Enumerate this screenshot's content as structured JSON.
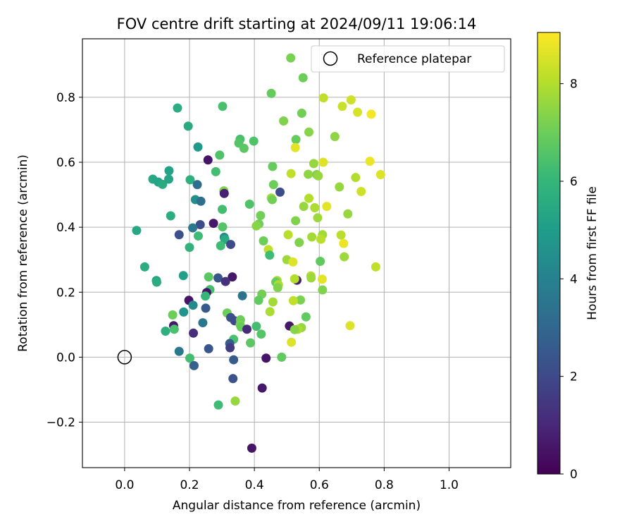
{
  "chart_data": {
    "type": "scatter",
    "title": "FOV centre drift starting at 2024/09/11 19:06:14",
    "xlabel": "Angular distance from reference (arcmin)",
    "ylabel": "Rotation from reference (arcmin)",
    "xlim": [
      -0.13,
      1.19
    ],
    "ylim": [
      -0.34,
      0.98
    ],
    "xticks": [
      0.0,
      0.2,
      0.4,
      0.6,
      0.8,
      1.0
    ],
    "xtick_labels": [
      "0.0",
      "0.2",
      "0.4",
      "0.6",
      "0.8",
      "1.0"
    ],
    "yticks": [
      -0.2,
      0.0,
      0.2,
      0.4,
      0.6,
      0.8
    ],
    "ytick_labels": [
      "−0.2",
      "0.0",
      "0.2",
      "0.4",
      "0.6",
      "0.8"
    ],
    "grid": true,
    "legend": {
      "placement": "top-right",
      "entries": [
        {
          "label": "Reference platepar",
          "marker": "open-circle",
          "x": 0.0,
          "y": 0.0
        }
      ]
    },
    "colorbar": {
      "label": "Hours from first FF file",
      "colormap": "viridis",
      "range": [
        0,
        9.05
      ],
      "ticks": [
        0,
        2,
        4,
        6,
        8
      ],
      "tick_labels": [
        "0",
        "2",
        "4",
        "6",
        "8"
      ]
    },
    "colormap_stops": [
      "#440154",
      "#482878",
      "#3e4a89",
      "#31688e",
      "#26828e",
      "#1f9e89",
      "#35b779",
      "#6ece58",
      "#b5de2b",
      "#fde725"
    ],
    "points": [
      {
        "x": 0.512,
        "y": 0.921,
        "h": 7.2
      },
      {
        "x": 0.55,
        "y": 0.86,
        "h": 7.0
      },
      {
        "x": 0.452,
        "y": 0.812,
        "h": 6.9
      },
      {
        "x": 0.613,
        "y": 0.798,
        "h": 8.2
      },
      {
        "x": 0.698,
        "y": 0.792,
        "h": 8.4
      },
      {
        "x": 0.76,
        "y": 0.748,
        "h": 8.9
      },
      {
        "x": 0.671,
        "y": 0.772,
        "h": 8.3
      },
      {
        "x": 0.718,
        "y": 0.754,
        "h": 8.5
      },
      {
        "x": 0.163,
        "y": 0.767,
        "h": 5.6
      },
      {
        "x": 0.302,
        "y": 0.772,
        "h": 6.4
      },
      {
        "x": 0.546,
        "y": 0.751,
        "h": 7.1
      },
      {
        "x": 0.49,
        "y": 0.727,
        "h": 7.3
      },
      {
        "x": 0.196,
        "y": 0.711,
        "h": 5.5
      },
      {
        "x": 0.568,
        "y": 0.693,
        "h": 7.4
      },
      {
        "x": 0.648,
        "y": 0.679,
        "h": 7.5
      },
      {
        "x": 0.356,
        "y": 0.671,
        "h": 6.4
      },
      {
        "x": 0.398,
        "y": 0.665,
        "h": 6.5
      },
      {
        "x": 0.528,
        "y": 0.67,
        "h": 6.9
      },
      {
        "x": 0.226,
        "y": 0.647,
        "h": 4.9
      },
      {
        "x": 0.352,
        "y": 0.659,
        "h": 6.6
      },
      {
        "x": 0.368,
        "y": 0.643,
        "h": 6.7
      },
      {
        "x": 0.526,
        "y": 0.645,
        "h": 8.7
      },
      {
        "x": 0.293,
        "y": 0.622,
        "h": 6.5
      },
      {
        "x": 0.257,
        "y": 0.607,
        "h": 0.5
      },
      {
        "x": 0.612,
        "y": 0.6,
        "h": 8.6
      },
      {
        "x": 0.756,
        "y": 0.603,
        "h": 8.8
      },
      {
        "x": 0.583,
        "y": 0.596,
        "h": 7.6
      },
      {
        "x": 0.456,
        "y": 0.587,
        "h": 6.9
      },
      {
        "x": 0.137,
        "y": 0.574,
        "h": 5.2
      },
      {
        "x": 0.281,
        "y": 0.571,
        "h": 6.3
      },
      {
        "x": 0.566,
        "y": 0.563,
        "h": 7.5
      },
      {
        "x": 0.513,
        "y": 0.565,
        "h": 8.2
      },
      {
        "x": 0.592,
        "y": 0.562,
        "h": 7.3
      },
      {
        "x": 0.597,
        "y": 0.558,
        "h": 7.6
      },
      {
        "x": 0.712,
        "y": 0.553,
        "h": 8.0
      },
      {
        "x": 0.789,
        "y": 0.562,
        "h": 8.6
      },
      {
        "x": 0.087,
        "y": 0.548,
        "h": 5.4
      },
      {
        "x": 0.104,
        "y": 0.539,
        "h": 5.3
      },
      {
        "x": 0.117,
        "y": 0.532,
        "h": 5.5
      },
      {
        "x": 0.202,
        "y": 0.546,
        "h": 5.7
      },
      {
        "x": 0.136,
        "y": 0.548,
        "h": 5.3
      },
      {
        "x": 0.224,
        "y": 0.531,
        "h": 3.2
      },
      {
        "x": 0.459,
        "y": 0.531,
        "h": 7.0
      },
      {
        "x": 0.662,
        "y": 0.524,
        "h": 7.6
      },
      {
        "x": 0.729,
        "y": 0.51,
        "h": 8.4
      },
      {
        "x": 0.306,
        "y": 0.512,
        "h": 7.3
      },
      {
        "x": 0.479,
        "y": 0.508,
        "h": 2.1
      },
      {
        "x": 0.307,
        "y": 0.504,
        "h": 0.8
      },
      {
        "x": 0.568,
        "y": 0.489,
        "h": 8.0
      },
      {
        "x": 0.452,
        "y": 0.49,
        "h": 7.8
      },
      {
        "x": 0.455,
        "y": 0.485,
        "h": 7.1
      },
      {
        "x": 0.218,
        "y": 0.485,
        "h": 4.5
      },
      {
        "x": 0.235,
        "y": 0.48,
        "h": 3.3
      },
      {
        "x": 0.385,
        "y": 0.471,
        "h": 6.5
      },
      {
        "x": 0.586,
        "y": 0.46,
        "h": 7.9
      },
      {
        "x": 0.552,
        "y": 0.464,
        "h": 7.6
      },
      {
        "x": 0.623,
        "y": 0.464,
        "h": 8.7
      },
      {
        "x": 0.301,
        "y": 0.455,
        "h": 6.3
      },
      {
        "x": 0.688,
        "y": 0.441,
        "h": 7.6
      },
      {
        "x": 0.419,
        "y": 0.436,
        "h": 7.1
      },
      {
        "x": 0.142,
        "y": 0.435,
        "h": 5.6
      },
      {
        "x": 0.595,
        "y": 0.429,
        "h": 7.7
      },
      {
        "x": 0.527,
        "y": 0.42,
        "h": 7.3
      },
      {
        "x": 0.414,
        "y": 0.41,
        "h": 7.1
      },
      {
        "x": 0.406,
        "y": 0.404,
        "h": 7.4
      },
      {
        "x": 0.274,
        "y": 0.412,
        "h": 0.6
      },
      {
        "x": 0.233,
        "y": 0.408,
        "h": 2.1
      },
      {
        "x": 0.302,
        "y": 0.401,
        "h": 6.6
      },
      {
        "x": 0.21,
        "y": 0.398,
        "h": 3.6
      },
      {
        "x": 0.037,
        "y": 0.39,
        "h": 5.4
      },
      {
        "x": 0.504,
        "y": 0.377,
        "h": 8.1
      },
      {
        "x": 0.168,
        "y": 0.377,
        "h": 2.2
      },
      {
        "x": 0.227,
        "y": 0.373,
        "h": 6.2
      },
      {
        "x": 0.577,
        "y": 0.37,
        "h": 7.8
      },
      {
        "x": 0.61,
        "y": 0.377,
        "h": 7.8
      },
      {
        "x": 0.667,
        "y": 0.376,
        "h": 8.1
      },
      {
        "x": 0.307,
        "y": 0.369,
        "h": 4.4
      },
      {
        "x": 0.309,
        "y": 0.362,
        "h": 5.5
      },
      {
        "x": 0.428,
        "y": 0.358,
        "h": 7.0
      },
      {
        "x": 0.605,
        "y": 0.363,
        "h": 8.1
      },
      {
        "x": 0.538,
        "y": 0.353,
        "h": 7.3
      },
      {
        "x": 0.327,
        "y": 0.347,
        "h": 2.0
      },
      {
        "x": 0.296,
        "y": 0.343,
        "h": 6.2
      },
      {
        "x": 0.675,
        "y": 0.35,
        "h": 8.8
      },
      {
        "x": 0.2,
        "y": 0.338,
        "h": 5.8
      },
      {
        "x": 0.443,
        "y": 0.331,
        "h": 8.2
      },
      {
        "x": 0.447,
        "y": 0.314,
        "h": 6.2
      },
      {
        "x": 0.677,
        "y": 0.309,
        "h": 7.7
      },
      {
        "x": 0.5,
        "y": 0.3,
        "h": 7.7
      },
      {
        "x": 0.519,
        "y": 0.293,
        "h": 8.6
      },
      {
        "x": 0.603,
        "y": 0.295,
        "h": 6.8
      },
      {
        "x": 0.062,
        "y": 0.278,
        "h": 5.6
      },
      {
        "x": 0.774,
        "y": 0.278,
        "h": 8.2
      },
      {
        "x": 0.574,
        "y": 0.25,
        "h": 8.0
      },
      {
        "x": 0.181,
        "y": 0.251,
        "h": 5.1
      },
      {
        "x": 0.259,
        "y": 0.247,
        "h": 6.7
      },
      {
        "x": 0.288,
        "y": 0.244,
        "h": 2.4
      },
      {
        "x": 0.332,
        "y": 0.247,
        "h": 0.6
      },
      {
        "x": 0.575,
        "y": 0.244,
        "h": 7.7
      },
      {
        "x": 0.609,
        "y": 0.24,
        "h": 8.7
      },
      {
        "x": 0.531,
        "y": 0.237,
        "h": 0.8
      },
      {
        "x": 0.524,
        "y": 0.241,
        "h": 8.0
      },
      {
        "x": 0.47,
        "y": 0.236,
        "h": 7.8
      },
      {
        "x": 0.098,
        "y": 0.236,
        "h": 5.2
      },
      {
        "x": 0.099,
        "y": 0.231,
        "h": 5.6
      },
      {
        "x": 0.311,
        "y": 0.233,
        "h": 1.3
      },
      {
        "x": 0.466,
        "y": 0.231,
        "h": 6.9
      },
      {
        "x": 0.474,
        "y": 0.223,
        "h": 7.9
      },
      {
        "x": 0.472,
        "y": 0.214,
        "h": 7.3
      },
      {
        "x": 0.263,
        "y": 0.208,
        "h": 6.3
      },
      {
        "x": 0.61,
        "y": 0.207,
        "h": 7.3
      },
      {
        "x": 0.253,
        "y": 0.199,
        "h": 0.5
      },
      {
        "x": 0.249,
        "y": 0.188,
        "h": 6.0
      },
      {
        "x": 0.423,
        "y": 0.194,
        "h": 7.1
      },
      {
        "x": 0.363,
        "y": 0.189,
        "h": 3.5
      },
      {
        "x": 0.413,
        "y": 0.175,
        "h": 6.8
      },
      {
        "x": 0.542,
        "y": 0.176,
        "h": 7.2
      },
      {
        "x": 0.52,
        "y": 0.174,
        "h": 8.2
      },
      {
        "x": 0.457,
        "y": 0.17,
        "h": 7.8
      },
      {
        "x": 0.198,
        "y": 0.175,
        "h": 0.5
      },
      {
        "x": 0.211,
        "y": 0.16,
        "h": 4.3
      },
      {
        "x": 0.25,
        "y": 0.151,
        "h": 2.5
      },
      {
        "x": 0.182,
        "y": 0.139,
        "h": 4.7
      },
      {
        "x": 0.316,
        "y": 0.136,
        "h": 7.0
      },
      {
        "x": 0.448,
        "y": 0.14,
        "h": 7.9
      },
      {
        "x": 0.148,
        "y": 0.13,
        "h": 7.0
      },
      {
        "x": 0.559,
        "y": 0.124,
        "h": 6.8
      },
      {
        "x": 0.327,
        "y": 0.122,
        "h": 2.2
      },
      {
        "x": 0.339,
        "y": 0.112,
        "h": 2.0
      },
      {
        "x": 0.357,
        "y": 0.115,
        "h": 7.0
      },
      {
        "x": 0.241,
        "y": 0.106,
        "h": 3.6
      },
      {
        "x": 0.356,
        "y": 0.1,
        "h": 7.2
      },
      {
        "x": 0.151,
        "y": 0.097,
        "h": 0.6
      },
      {
        "x": 0.508,
        "y": 0.096,
        "h": 0.6
      },
      {
        "x": 0.695,
        "y": 0.097,
        "h": 8.6
      },
      {
        "x": 0.406,
        "y": 0.095,
        "h": 6.3
      },
      {
        "x": 0.359,
        "y": 0.093,
        "h": 6.9
      },
      {
        "x": 0.545,
        "y": 0.091,
        "h": 7.6
      },
      {
        "x": 0.534,
        "y": 0.086,
        "h": 7.9
      },
      {
        "x": 0.377,
        "y": 0.086,
        "h": 1.1
      },
      {
        "x": 0.524,
        "y": 0.085,
        "h": 7.4
      },
      {
        "x": 0.153,
        "y": 0.086,
        "h": 6.4
      },
      {
        "x": 0.126,
        "y": 0.08,
        "h": 5.7
      },
      {
        "x": 0.212,
        "y": 0.074,
        "h": 1.2
      },
      {
        "x": 0.421,
        "y": 0.071,
        "h": 6.6
      },
      {
        "x": 0.336,
        "y": 0.055,
        "h": 6.4
      },
      {
        "x": 0.514,
        "y": 0.046,
        "h": 8.6
      },
      {
        "x": 0.388,
        "y": 0.044,
        "h": 6.7
      },
      {
        "x": 0.324,
        "y": 0.042,
        "h": 2.6
      },
      {
        "x": 0.325,
        "y": 0.029,
        "h": 1.6
      },
      {
        "x": 0.259,
        "y": 0.026,
        "h": 2.4
      },
      {
        "x": 0.168,
        "y": 0.018,
        "h": 3.6
      },
      {
        "x": 0.484,
        "y": 0.0,
        "h": 6.8
      },
      {
        "x": 0.201,
        "y": -0.003,
        "h": 6.3
      },
      {
        "x": 0.436,
        "y": -0.003,
        "h": 0.5
      },
      {
        "x": 0.336,
        "y": -0.008,
        "h": 2.6
      },
      {
        "x": 0.214,
        "y": -0.026,
        "h": 2.8
      },
      {
        "x": 0.334,
        "y": -0.066,
        "h": 2.3
      },
      {
        "x": 0.424,
        "y": -0.095,
        "h": 0.6
      },
      {
        "x": 0.341,
        "y": -0.135,
        "h": 7.6
      },
      {
        "x": 0.289,
        "y": -0.147,
        "h": 6.2
      },
      {
        "x": 0.392,
        "y": -0.28,
        "h": 0.5
      }
    ]
  }
}
